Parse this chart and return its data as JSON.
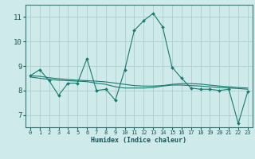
{
  "xlabel": "Humidex (Indice chaleur)",
  "background_color": "#ceeaea",
  "grid_color": "#aecece",
  "line_color": "#1a7a6e",
  "xlim": [
    -0.5,
    23.5
  ],
  "ylim": [
    6.5,
    11.5
  ],
  "yticks": [
    7,
    8,
    9,
    10,
    11
  ],
  "xticks": [
    0,
    1,
    2,
    3,
    4,
    5,
    6,
    7,
    8,
    9,
    10,
    11,
    12,
    13,
    14,
    15,
    16,
    17,
    18,
    19,
    20,
    21,
    22,
    23
  ],
  "line1_x": [
    0,
    1,
    2,
    3,
    4,
    5,
    6,
    7,
    8,
    9,
    10,
    11,
    12,
    13,
    14,
    15,
    16,
    17,
    18,
    19,
    20,
    21,
    22,
    23
  ],
  "line1_y": [
    8.6,
    8.85,
    8.4,
    7.8,
    8.3,
    8.3,
    9.3,
    8.0,
    8.05,
    7.6,
    8.85,
    10.45,
    10.85,
    11.15,
    10.6,
    8.95,
    8.5,
    8.1,
    8.05,
    8.05,
    8.0,
    8.05,
    6.65,
    7.95
  ],
  "line2_x": [
    0,
    1,
    2,
    3,
    4,
    5,
    6,
    7,
    8,
    9,
    10,
    11,
    12,
    13,
    14,
    15,
    16,
    17,
    18,
    19,
    20,
    21,
    22,
    23
  ],
  "line2_y": [
    8.55,
    8.5,
    8.45,
    8.42,
    8.4,
    8.38,
    8.36,
    8.3,
    8.25,
    8.15,
    8.1,
    8.1,
    8.1,
    8.12,
    8.18,
    8.22,
    8.22,
    8.2,
    8.18,
    8.15,
    8.12,
    8.1,
    8.08,
    8.05
  ],
  "line3_x": [
    0,
    1,
    2,
    3,
    4,
    5,
    6,
    7,
    8,
    9,
    10,
    11,
    12,
    13,
    14,
    15,
    16,
    17,
    18,
    19,
    20,
    21,
    22,
    23
  ],
  "line3_y": [
    8.6,
    8.58,
    8.52,
    8.48,
    8.45,
    8.42,
    8.4,
    8.38,
    8.35,
    8.3,
    8.25,
    8.2,
    8.18,
    8.18,
    8.2,
    8.25,
    8.28,
    8.28,
    8.26,
    8.22,
    8.18,
    8.15,
    8.12,
    8.1
  ]
}
